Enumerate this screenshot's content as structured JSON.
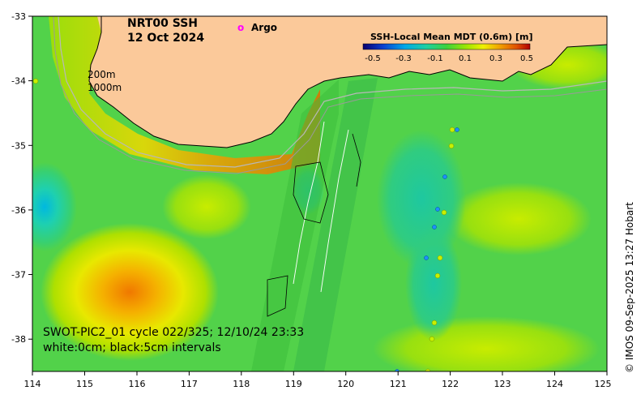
{
  "map": {
    "title_line1": "NRT00 SSH",
    "title_line2": "12 Oct 2024",
    "legend_marker_symbol": "o",
    "legend_marker_label": "Argo",
    "legend_marker_color": "#ff00ff",
    "isobath_200": "200m",
    "isobath_1000": "1000m",
    "swath_info": "SWOT-PIC2_01 cycle 022/325; 12/10/24 23:33",
    "contour_info": "white:0cm; black:5cm intervals",
    "credit": "© IMOS 09-Sep-2025 13:27 Hobart",
    "x_ticks": [
      "114",
      "115",
      "116",
      "117",
      "118",
      "119",
      "120",
      "121",
      "122",
      "123",
      "124",
      "125"
    ],
    "y_ticks": [
      "-33",
      "-34",
      "-35",
      "-36",
      "-37",
      "-38"
    ]
  },
  "colorbar": {
    "title": "SSH-Local Mean MDT (0.6m) [m]",
    "ticks": [
      "-0.5",
      "-0.3",
      "-0.1",
      "0.1",
      "0.3",
      "0.5"
    ],
    "colors": [
      "#08006e",
      "#0a3fd0",
      "#00a8e8",
      "#1fd0a0",
      "#3cd23c",
      "#9ee600",
      "#f0f000",
      "#f0a000",
      "#e05000",
      "#b00000"
    ]
  },
  "colors": {
    "land": "#fbc99a",
    "ocean_base": "#52d24a"
  }
}
